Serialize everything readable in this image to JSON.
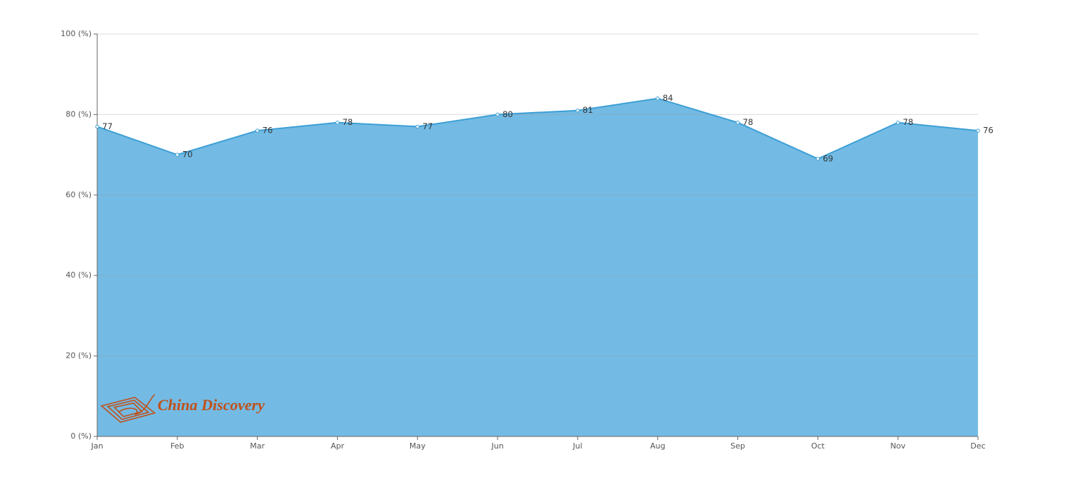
{
  "chart_data": {
    "type": "area",
    "categories": [
      "Jan",
      "Feb",
      "Mar",
      "Apr",
      "May",
      "Jun",
      "Jul",
      "Aug",
      "Sep",
      "Oct",
      "Nov",
      "Dec"
    ],
    "values": [
      77,
      70,
      76,
      78,
      77,
      80,
      81,
      84,
      78,
      69,
      78,
      76
    ],
    "color": "#3d9fd6",
    "fill": "#5aafdf",
    "ylim": [
      0,
      100
    ],
    "yticks": [
      {
        "value": 0,
        "label": "0 (%)"
      },
      {
        "value": 20,
        "label": "20 (%)"
      },
      {
        "value": 40,
        "label": "40 (%)"
      },
      {
        "value": 60,
        "label": "60 (%)"
      },
      {
        "value": 80,
        "label": "80 (%)"
      },
      {
        "value": 100,
        "label": "100 (%)"
      }
    ],
    "grid": true,
    "watermark": "China Discovery"
  }
}
